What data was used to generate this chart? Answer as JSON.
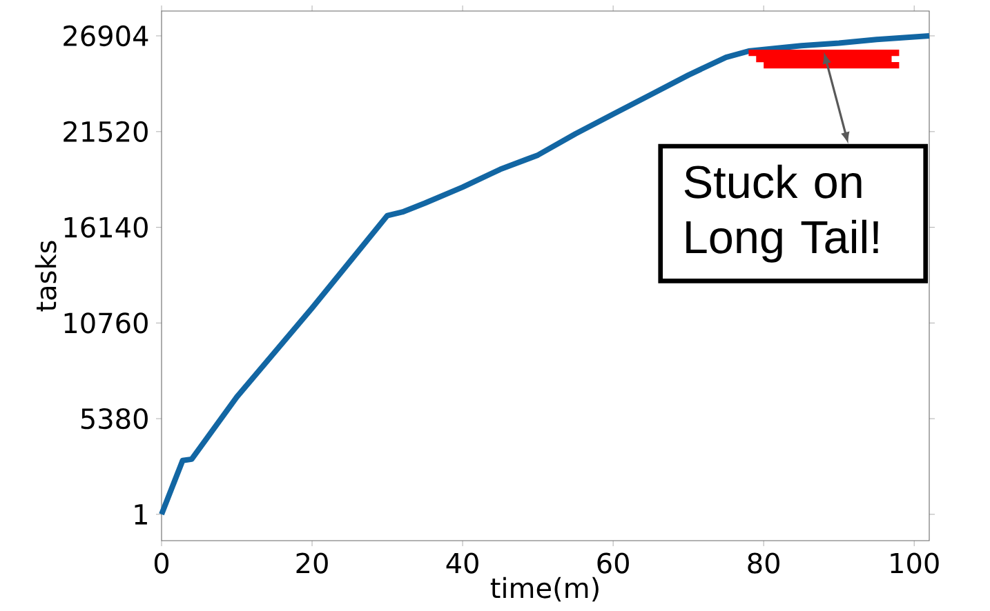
{
  "chart_data": {
    "type": "line",
    "xlabel": "time(m)",
    "ylabel": "tasks",
    "xlim": [
      0,
      102
    ],
    "ylim": [
      -1480,
      28300
    ],
    "xticks": [
      0,
      20,
      40,
      60,
      80,
      100
    ],
    "yticks": [
      1,
      5380,
      10760,
      16140,
      21520,
      26904
    ],
    "series": [
      {
        "color": "#1266a3",
        "x": [
          0,
          2.8,
          4,
          10,
          20,
          30,
          32,
          35,
          40,
          45,
          50,
          55,
          60,
          65,
          70,
          75,
          78,
          85,
          90,
          95,
          102
        ],
        "values": [
          1,
          3030,
          3100,
          6600,
          11600,
          16800,
          17000,
          17500,
          18400,
          19400,
          20200,
          21400,
          22500,
          23600,
          24700,
          25700,
          26050,
          26350,
          26500,
          26700,
          26904
        ]
      },
      {
        "color": "#ff0000",
        "x": [
          78,
          98
        ],
        "values": [
          25950,
          25950
        ]
      },
      {
        "color": "#ff0000",
        "x": [
          79,
          97
        ],
        "values": [
          25600,
          25600
        ]
      },
      {
        "color": "#ff0000",
        "x": [
          80,
          98
        ],
        "values": [
          25250,
          25250
        ]
      }
    ],
    "annotations": [
      {
        "text": "Stuck on Long Tail!",
        "x": 88,
        "y": 26000
      }
    ]
  }
}
